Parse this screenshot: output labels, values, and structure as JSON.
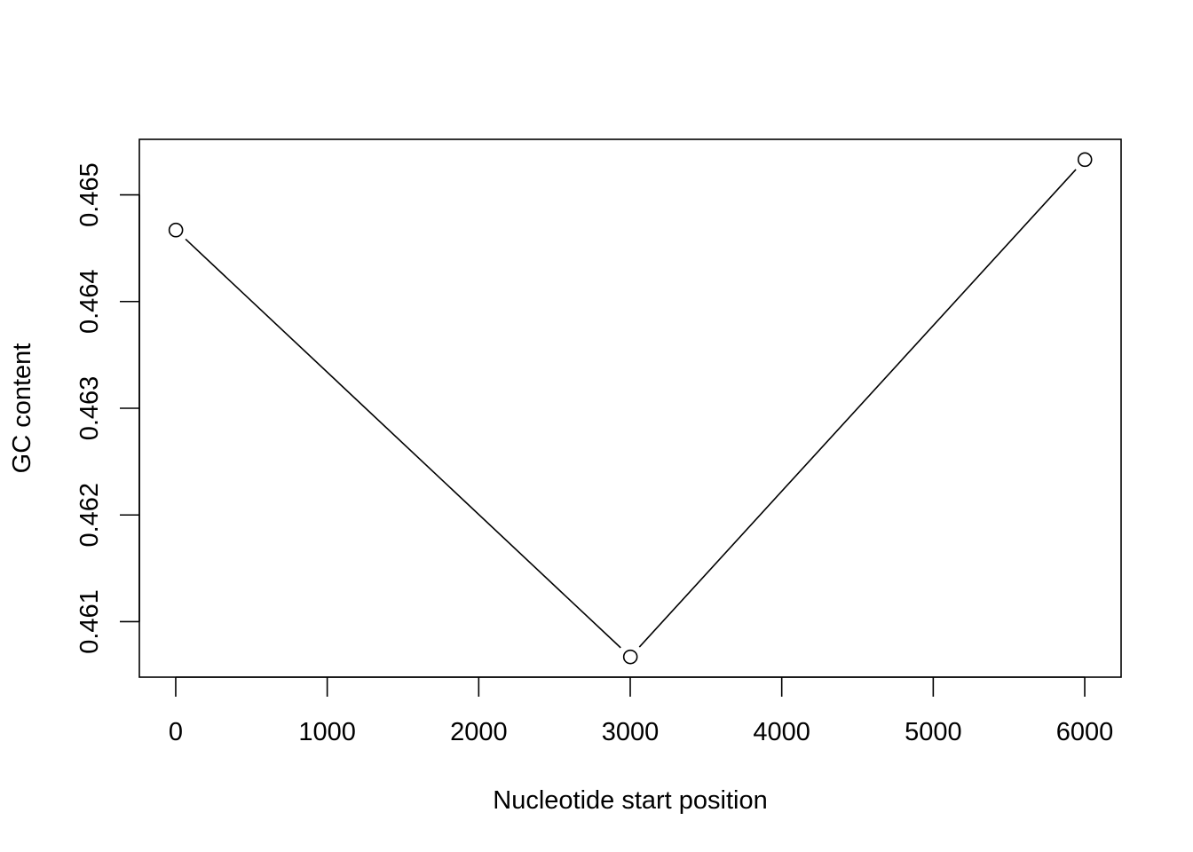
{
  "chart_data": {
    "type": "line",
    "title": "",
    "xlabel": "Nucleotide start position",
    "ylabel": "GC content",
    "x": [
      1,
      3001,
      6001
    ],
    "series": [
      {
        "values": [
          0.46467,
          0.46067,
          0.46533
        ],
        "marker": "open-circle",
        "color": "#000000"
      }
    ],
    "xlim": [
      -240,
      6240
    ],
    "ylim": [
      0.46048,
      0.46552
    ],
    "x_ticks": [
      0,
      1000,
      2000,
      3000,
      4000,
      5000,
      6000
    ],
    "x_tick_labels": [
      "0",
      "1000",
      "2000",
      "3000",
      "4000",
      "5000",
      "6000"
    ],
    "y_ticks": [
      0.461,
      0.462,
      0.463,
      0.464,
      0.465
    ],
    "y_tick_labels": [
      "0.461",
      "0.462",
      "0.463",
      "0.464",
      "0.465"
    ],
    "grid": false,
    "legend": "none"
  }
}
